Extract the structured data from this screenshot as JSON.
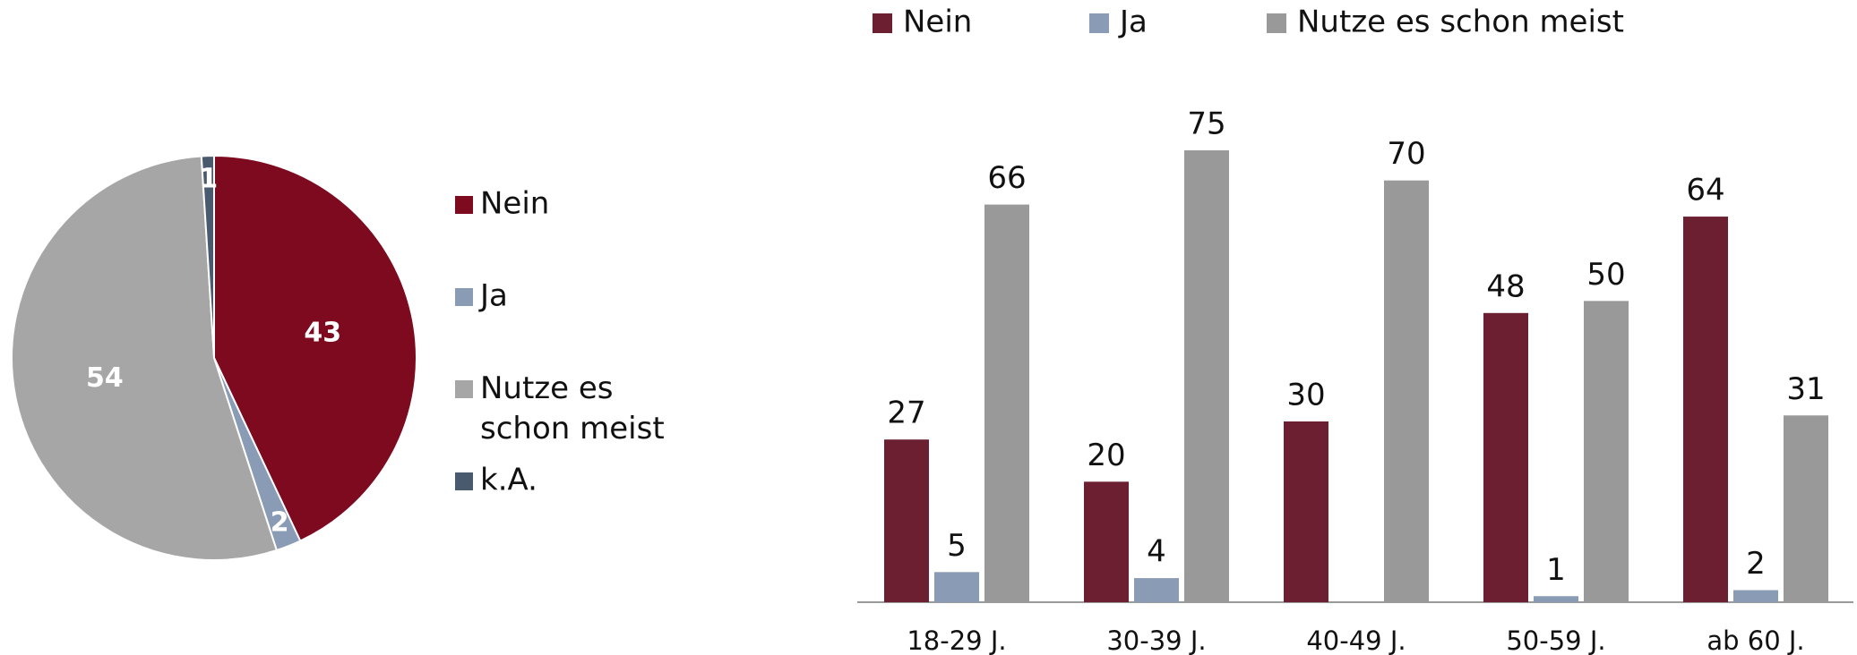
{
  "chart_data": [
    {
      "type": "pie",
      "categories": [
        "Nein",
        "Ja",
        "Nutze es schon meist",
        "k.A."
      ],
      "values": [
        43,
        2,
        54,
        1
      ],
      "colors": [
        "#7d0a1e",
        "#8a9bb5",
        "#a6a6a6",
        "#4a5a6e"
      ],
      "legend": "right"
    },
    {
      "type": "bar",
      "categories": [
        "18-29 J.",
        "30-39 J.",
        "40-49 J.",
        "50-59 J.",
        "ab 60 J."
      ],
      "series": [
        {
          "name": "Nein",
          "color": "#6b1f31",
          "values": [
            27,
            20,
            30,
            48,
            64
          ]
        },
        {
          "name": "Ja",
          "color": "#8a9bb5",
          "values": [
            5,
            4,
            null,
            1,
            2
          ]
        },
        {
          "name": "Nutze es schon meist",
          "color": "#999999",
          "values": [
            66,
            75,
            70,
            50,
            31
          ]
        }
      ],
      "ylim": [
        0,
        75
      ],
      "legend": "top"
    }
  ]
}
